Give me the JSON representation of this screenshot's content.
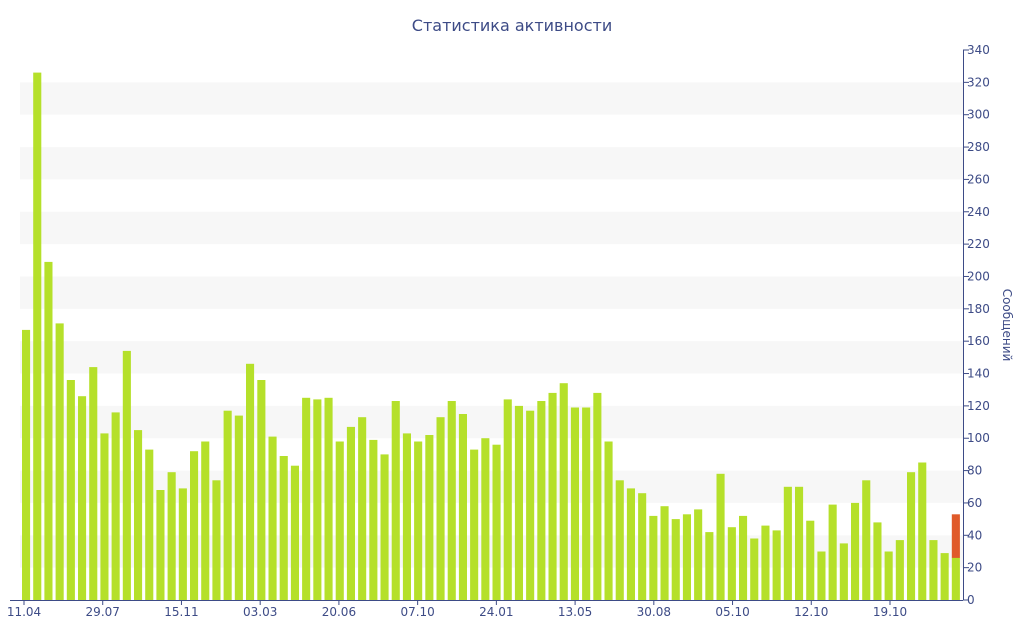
{
  "chart_data": {
    "type": "bar",
    "title": "Статистика активности",
    "xlabel": "",
    "ylabel": "Сообщений",
    "ylim": [
      0,
      340
    ],
    "yticks": [
      0,
      20,
      40,
      60,
      80,
      100,
      120,
      140,
      160,
      180,
      200,
      220,
      240,
      260,
      280,
      300,
      320,
      340
    ],
    "grid": "alternating horizontal bands",
    "x_tick_labels": [
      "11.04",
      "29.07",
      "15.11",
      "03.03",
      "20.06",
      "07.10",
      "24.01",
      "13.05",
      "30.08",
      "05.10",
      "12.10",
      "19.10"
    ],
    "colors": {
      "bar": "#b5e02a",
      "highlight": "#e05a2a",
      "band": "#f7f7f7",
      "axis": "#3d4b86"
    },
    "values": [
      167,
      326,
      209,
      171,
      136,
      126,
      144,
      103,
      116,
      154,
      105,
      93,
      68,
      79,
      69,
      92,
      98,
      74,
      117,
      114,
      146,
      136,
      101,
      89,
      83,
      125,
      124,
      125,
      98,
      107,
      113,
      99,
      90,
      123,
      103,
      98,
      102,
      113,
      123,
      115,
      93,
      100,
      96,
      124,
      120,
      117,
      123,
      128,
      134,
      119,
      119,
      128,
      98,
      74,
      69,
      66,
      52,
      58,
      50,
      53,
      56,
      42,
      78,
      45,
      52,
      38,
      46,
      43,
      70,
      70,
      49,
      30,
      59,
      35,
      60,
      74,
      48,
      30,
      37,
      79,
      85,
      37,
      29
    ],
    "highlight_bar": {
      "from": 26,
      "to": 53
    }
  }
}
